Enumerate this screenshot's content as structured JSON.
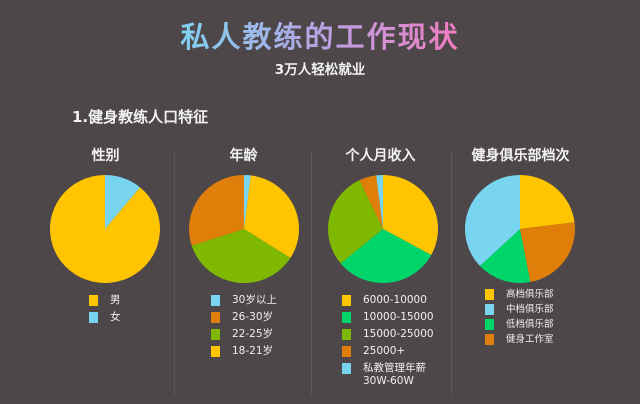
{
  "header": {
    "title": "私人教练的工作现状",
    "subtitle": "3万人轻松就业",
    "section_title": "1.健身教练人口特征"
  },
  "colors": {
    "background": "#4d4749",
    "yellow": "#ffc500",
    "light_blue": "#79d4ef",
    "orange": "#e07e0a",
    "olive_green": "#7fb800",
    "bright_green": "#00d56a"
  },
  "chart_data": [
    {
      "type": "pie",
      "title": "性别",
      "start_angle": "12 o'clock, clockwise",
      "slices": [
        {
          "label": "女",
          "value": 11,
          "color": "#79d4ef"
        },
        {
          "label": "男",
          "value": 89,
          "color": "#ffc500"
        }
      ],
      "legend": [
        {
          "label": "男",
          "color": "#ffc500"
        },
        {
          "label": "女",
          "color": "#79d4ef"
        }
      ]
    },
    {
      "type": "pie",
      "title": "年龄",
      "start_angle": "12 o'clock, clockwise",
      "slices": [
        {
          "label": "30岁以上",
          "value": 2,
          "color": "#79d4ef"
        },
        {
          "label": "18-21岁",
          "value": 32,
          "color": "#ffc500"
        },
        {
          "label": "22-25岁",
          "value": 36,
          "color": "#7fb800"
        },
        {
          "label": "26-30岁",
          "value": 30,
          "color": "#e07e0a"
        }
      ],
      "legend": [
        {
          "label": "30岁以上",
          "color": "#79d4ef"
        },
        {
          "label": "26-30岁",
          "color": "#e07e0a"
        },
        {
          "label": "22-25岁",
          "color": "#7fb800"
        },
        {
          "label": "18-21岁",
          "color": "#ffc500"
        }
      ]
    },
    {
      "type": "pie",
      "title": "个人月收入",
      "start_angle": "12 o'clock, clockwise",
      "slices": [
        {
          "label": "6000-10000",
          "value": 33,
          "color": "#ffc500"
        },
        {
          "label": "10000-15000",
          "value": 31,
          "color": "#00d56a"
        },
        {
          "label": "15000-25000",
          "value": 29,
          "color": "#7fb800"
        },
        {
          "label": "25000+",
          "value": 5,
          "color": "#e07e0a"
        },
        {
          "label": "私教管理年薪 30W-60W",
          "value": 2,
          "color": "#79d4ef"
        }
      ],
      "legend": [
        {
          "label": "6000-10000",
          "color": "#ffc500"
        },
        {
          "label": "10000-15000",
          "color": "#00d56a"
        },
        {
          "label": "15000-25000",
          "color": "#7fb800"
        },
        {
          "label": "25000+",
          "color": "#e07e0a"
        },
        {
          "label": "私教管理年薪",
          "label2": "30W-60W",
          "color": "#79d4ef"
        }
      ]
    },
    {
      "type": "pie",
      "title": "健身俱乐部档次",
      "start_angle": "12 o'clock, clockwise",
      "slices": [
        {
          "label": "高档俱乐部",
          "value": 23,
          "color": "#ffc500"
        },
        {
          "label": "健身工作室",
          "value": 24,
          "color": "#e07e0a"
        },
        {
          "label": "低档俱乐部",
          "value": 16,
          "color": "#00d56a"
        },
        {
          "label": "中档俱乐部",
          "value": 37,
          "color": "#79d4ef"
        }
      ],
      "legend": [
        {
          "label": "高档俱乐部",
          "color": "#ffc500"
        },
        {
          "label": "中档俱乐部",
          "color": "#79d4ef"
        },
        {
          "label": "低档俱乐部",
          "color": "#00d56a"
        },
        {
          "label": "健身工作室",
          "color": "#e07e0a"
        }
      ]
    }
  ]
}
